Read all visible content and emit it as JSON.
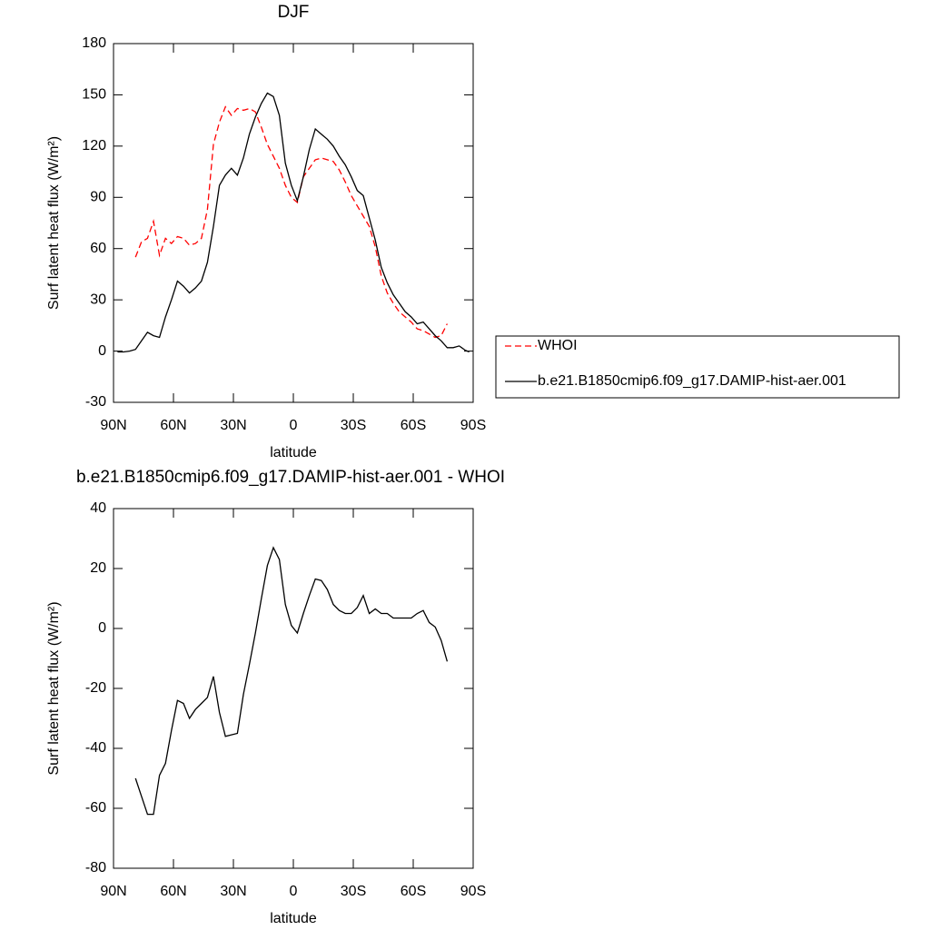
{
  "chart_data": [
    {
      "type": "line",
      "title": "DJF",
      "xlabel": "latitude",
      "ylabel": "Surf latent heat flux (W/m²)",
      "x": [
        88,
        85,
        82,
        79,
        76,
        73,
        70,
        67,
        64,
        61,
        58,
        55,
        52,
        49,
        46,
        43,
        40,
        37,
        34,
        31,
        28,
        25,
        22,
        19,
        16,
        13,
        10,
        7,
        4,
        1,
        -2,
        -5,
        -8,
        -11,
        -14,
        -17,
        -20,
        -23,
        -26,
        -29,
        -32,
        -35,
        -38,
        -41,
        -44,
        -47,
        -50,
        -53,
        -56,
        -59,
        -62,
        -65,
        -68,
        -71,
        -74,
        -77,
        -80,
        -83,
        -86,
        -88
      ],
      "series": [
        {
          "name": "WHOI",
          "color": "#ff0000",
          "line_style": "dashed",
          "values": [
            null,
            null,
            null,
            55,
            64,
            66,
            76,
            56,
            66,
            63,
            67,
            66,
            62,
            63,
            66,
            83,
            121,
            134,
            143,
            138,
            142,
            141,
            142,
            140,
            131,
            121,
            114,
            107,
            97,
            90,
            87,
            102,
            107,
            112,
            113,
            112,
            111,
            106,
            99,
            91,
            85,
            79,
            73,
            61,
            44,
            34,
            28,
            23,
            20,
            17,
            13,
            12,
            10,
            8,
            9,
            16,
            null,
            null,
            null,
            null
          ]
        },
        {
          "name": "b.e21.B1850cmip6.f09_g17.DAMIP-hist-aer.001",
          "color": "#000000",
          "line_style": "solid",
          "values": [
            -0.5,
            -0.5,
            0,
            1,
            6,
            11,
            9,
            8,
            20,
            30,
            41,
            38,
            34,
            37,
            41,
            52,
            73,
            97,
            103,
            107,
            103,
            113,
            127,
            137,
            145,
            151,
            149,
            138,
            110,
            97,
            88,
            102,
            118,
            130,
            127,
            124,
            120,
            114,
            109,
            102,
            94,
            91,
            78,
            65,
            49,
            40,
            33,
            28,
            23,
            20,
            16,
            17,
            13,
            9,
            6,
            2,
            2,
            3,
            0.5,
            -0.5
          ]
        }
      ],
      "xlim": [
        90,
        -90
      ],
      "xticks": [
        {
          "value": 90,
          "label": "90N"
        },
        {
          "value": 60,
          "label": "60N"
        },
        {
          "value": 30,
          "label": "30N"
        },
        0,
        {
          "value": -30,
          "label": "30S"
        },
        {
          "value": -60,
          "label": "60S"
        },
        {
          "value": -90,
          "label": "90S"
        }
      ],
      "ylim": [
        -30,
        180
      ],
      "yticks": [
        -30,
        0,
        30,
        60,
        90,
        120,
        150,
        180
      ],
      "legend": "right"
    },
    {
      "type": "line",
      "title": "b.e21.B1850cmip6.f09_g17.DAMIP-hist-aer.001 - WHOI",
      "xlabel": "latitude",
      "ylabel": "Surf latent heat flux (W/m²)",
      "x": [
        88,
        85,
        82,
        79,
        76,
        73,
        70,
        67,
        64,
        61,
        58,
        55,
        52,
        49,
        46,
        43,
        40,
        37,
        34,
        31,
        28,
        25,
        22,
        19,
        16,
        13,
        10,
        7,
        4,
        1,
        -2,
        -5,
        -8,
        -11,
        -14,
        -17,
        -20,
        -23,
        -26,
        -29,
        -32,
        -35,
        -38,
        -41,
        -44,
        -47,
        -50,
        -53,
        -56,
        -59,
        -62,
        -65,
        -68,
        -71,
        -74,
        -77,
        -80,
        -83,
        -86,
        -88
      ],
      "values": [
        null,
        null,
        null,
        -50,
        -56,
        -62,
        -62,
        -49,
        -45,
        -34,
        -24,
        -25,
        -30,
        -27,
        -25,
        -23,
        -16,
        -28,
        -36,
        -35.5,
        -35,
        -22,
        -12,
        -1.5,
        10,
        21,
        27,
        23,
        8,
        1,
        -1.5,
        5,
        11,
        16.5,
        16,
        13,
        8,
        6,
        5,
        5,
        7,
        11,
        5,
        6.5,
        5,
        5,
        3.5,
        3.5,
        3.5,
        3.5,
        5,
        6,
        2,
        0.5,
        -4,
        -11,
        null,
        null,
        null,
        null
      ],
      "color": "#000000",
      "xlim": [
        90,
        -90
      ],
      "xticks": [
        {
          "value": 90,
          "label": "90N"
        },
        {
          "value": 60,
          "label": "60N"
        },
        {
          "value": 30,
          "label": "30N"
        },
        0,
        {
          "value": -30,
          "label": "30S"
        },
        {
          "value": -60,
          "label": "60S"
        },
        {
          "value": -90,
          "label": "90S"
        }
      ],
      "ylim": [
        -80,
        40
      ],
      "yticks": [
        -80,
        -60,
        -40,
        -20,
        0,
        20,
        40
      ]
    }
  ]
}
